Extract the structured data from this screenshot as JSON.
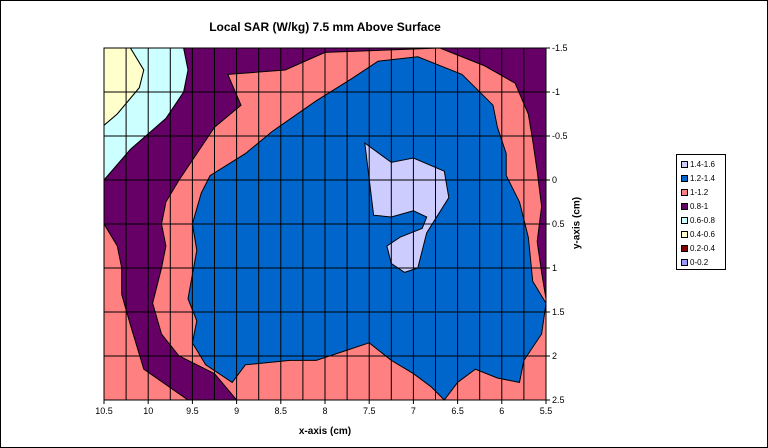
{
  "chart_data": {
    "type": "heatmap",
    "title": "Local SAR (W/kg) 7.5 mm Above Surface",
    "xlabel": "x-axis (cm)",
    "ylabel": "y-axis (cm)",
    "x_ticks": [
      "10.5",
      "10",
      "9.5",
      "9",
      "8.5",
      "8",
      "7.5",
      "7",
      "6.5",
      "6",
      "5.5"
    ],
    "y_ticks": [
      "-1.5",
      "-1",
      "-0.5",
      "0",
      "0.5",
      "1",
      "1.5",
      "2",
      "2.5"
    ],
    "xlim": [
      10.5,
      5.5
    ],
    "ylim": [
      -1.5,
      2.5
    ],
    "grid": true,
    "legend_position": "right",
    "legend": [
      {
        "label": "1.4-1.6",
        "color": "#ccccff"
      },
      {
        "label": "1.2-1.4",
        "color": "#0066cc"
      },
      {
        "label": "1-1.2",
        "color": "#ff8080"
      },
      {
        "label": "0.8-1",
        "color": "#660066"
      },
      {
        "label": "0.6-0.8",
        "color": "#ccffff"
      },
      {
        "label": "0.4-0.6",
        "color": "#ffffcc"
      },
      {
        "label": "0.2-0.4",
        "color": "#800000"
      },
      {
        "label": "0-0.2",
        "color": "#9999ff"
      }
    ],
    "regions": [
      {
        "range": "0.4-0.6",
        "color": "#ffffcc",
        "points": [
          [
            10.5,
            -1.5
          ],
          [
            10.2,
            -1.5
          ],
          [
            10.05,
            -1.25
          ],
          [
            10.1,
            -1.05
          ],
          [
            10.35,
            -0.75
          ],
          [
            10.5,
            -0.62
          ]
        ]
      },
      {
        "range": "0.8-1",
        "color": "#660066",
        "points": [
          [
            10.25,
            -1.5
          ],
          [
            5.5,
            -1.5
          ],
          [
            5.5,
            2.5
          ],
          [
            9.55,
            2.5
          ],
          [
            10.05,
            2.15
          ],
          [
            10.2,
            1.65
          ],
          [
            10.3,
            1.3
          ],
          [
            10.3,
            1.0
          ],
          [
            10.35,
            0.75
          ],
          [
            10.5,
            0.5
          ],
          [
            10.5,
            0.0
          ],
          [
            10.2,
            -0.35
          ],
          [
            9.8,
            -0.7
          ],
          [
            9.6,
            -1.0
          ],
          [
            9.55,
            -1.25
          ],
          [
            9.6,
            -1.5
          ]
        ]
      },
      {
        "range": "0.6-0.8",
        "color": "#ccffff",
        "points": [
          [
            10.25,
            -1.5
          ],
          [
            9.6,
            -1.5
          ],
          [
            9.55,
            -1.25
          ],
          [
            9.6,
            -1.0
          ],
          [
            9.8,
            -0.7
          ],
          [
            10.2,
            -0.35
          ],
          [
            10.5,
            0.0
          ],
          [
            10.5,
            -0.62
          ],
          [
            10.35,
            -0.75
          ],
          [
            10.1,
            -1.05
          ],
          [
            10.05,
            -1.25
          ],
          [
            10.2,
            -1.5
          ]
        ]
      },
      {
        "range": "1-1.2",
        "color": "#ff8080",
        "points": [
          [
            9.1,
            -1.2
          ],
          [
            8.45,
            -1.25
          ],
          [
            8.0,
            -1.45
          ],
          [
            6.7,
            -1.5
          ],
          [
            6.2,
            -1.3
          ],
          [
            5.85,
            -1.1
          ],
          [
            5.7,
            -0.75
          ],
          [
            5.65,
            -0.45
          ],
          [
            5.6,
            -0.1
          ],
          [
            5.55,
            0.3
          ],
          [
            5.6,
            0.7
          ],
          [
            5.55,
            1.05
          ],
          [
            5.5,
            1.35
          ],
          [
            5.5,
            2.5
          ],
          [
            9.0,
            2.5
          ],
          [
            9.25,
            2.2
          ],
          [
            9.65,
            2.0
          ],
          [
            9.85,
            1.75
          ],
          [
            9.95,
            1.4
          ],
          [
            9.85,
            1.0
          ],
          [
            9.8,
            0.75
          ],
          [
            9.85,
            0.5
          ],
          [
            9.8,
            0.25
          ],
          [
            9.65,
            0.0
          ],
          [
            9.45,
            -0.3
          ],
          [
            9.25,
            -0.6
          ],
          [
            8.95,
            -0.85
          ]
        ]
      },
      {
        "range": "1.2-1.4",
        "color": "#0066cc",
        "points": [
          [
            8.1,
            -0.9
          ],
          [
            7.7,
            -1.15
          ],
          [
            7.4,
            -1.35
          ],
          [
            6.95,
            -1.4
          ],
          [
            6.45,
            -1.2
          ],
          [
            6.1,
            -0.85
          ],
          [
            6.05,
            -0.6
          ],
          [
            5.95,
            -0.3
          ],
          [
            5.95,
            -0.05
          ],
          [
            5.8,
            0.25
          ],
          [
            5.7,
            0.65
          ],
          [
            5.65,
            1.15
          ],
          [
            5.5,
            1.4
          ],
          [
            5.55,
            1.75
          ],
          [
            5.75,
            2.05
          ],
          [
            5.8,
            2.3
          ],
          [
            6.05,
            2.25
          ],
          [
            6.3,
            2.15
          ],
          [
            6.5,
            2.3
          ],
          [
            6.65,
            2.5
          ],
          [
            6.8,
            2.35
          ],
          [
            7.0,
            2.2
          ],
          [
            7.25,
            2.05
          ],
          [
            7.5,
            1.85
          ],
          [
            7.8,
            1.95
          ],
          [
            8.1,
            2.05
          ],
          [
            8.4,
            2.05
          ],
          [
            8.9,
            2.1
          ],
          [
            9.05,
            2.3
          ],
          [
            9.35,
            2.1
          ],
          [
            9.5,
            1.85
          ],
          [
            9.45,
            1.6
          ],
          [
            9.55,
            1.35
          ],
          [
            9.45,
            0.8
          ],
          [
            9.5,
            0.5
          ],
          [
            9.4,
            0.15
          ],
          [
            9.3,
            -0.05
          ],
          [
            8.9,
            -0.3
          ],
          [
            8.6,
            -0.55
          ]
        ]
      },
      {
        "range": "1.4-1.6",
        "color": "#ccccff",
        "points": [
          [
            7.55,
            -0.42
          ],
          [
            7.25,
            -0.2
          ],
          [
            7.0,
            -0.25
          ],
          [
            6.65,
            -0.1
          ],
          [
            6.6,
            0.2
          ],
          [
            6.85,
            0.6
          ],
          [
            6.95,
            1.0
          ],
          [
            7.1,
            1.05
          ],
          [
            7.25,
            0.95
          ],
          [
            7.3,
            0.75
          ],
          [
            7.15,
            0.65
          ],
          [
            6.9,
            0.55
          ],
          [
            6.85,
            0.42
          ],
          [
            7.0,
            0.35
          ],
          [
            7.25,
            0.42
          ],
          [
            7.45,
            0.4
          ]
        ]
      }
    ]
  }
}
